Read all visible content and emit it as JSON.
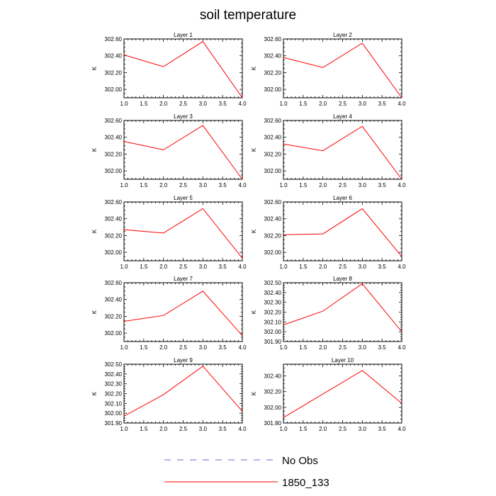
{
  "title": "soil temperature",
  "colors": {
    "model": "#ff0000",
    "obs": "#6a6ad0"
  },
  "legend": [
    {
      "label": "No Obs",
      "style": "dashed",
      "color": "#6a6ad0"
    },
    {
      "label": "1850_133",
      "style": "solid",
      "color": "#ff0000"
    }
  ],
  "chart_data": [
    {
      "type": "line",
      "title": "Layer 1",
      "ylabel": "K",
      "xlim": [
        1.0,
        4.0
      ],
      "ylim": [
        301.9,
        302.6
      ],
      "xticks": [
        "1.0",
        "1.5",
        "2.0",
        "2.5",
        "3.0",
        "3.5",
        "4.0"
      ],
      "yticks": [
        "302.00",
        "302.20",
        "302.40",
        "302.60"
      ],
      "ytick_values": [
        302.0,
        302.2,
        302.4,
        302.6
      ],
      "series": [
        {
          "name": "1850_133",
          "x": [
            1,
            2,
            3,
            4
          ],
          "values": [
            302.41,
            302.27,
            302.57,
            301.9
          ]
        }
      ]
    },
    {
      "type": "line",
      "title": "Layer 2",
      "ylabel": "K",
      "xlim": [
        1.0,
        4.0
      ],
      "ylim": [
        301.9,
        302.6
      ],
      "xticks": [
        "1.0",
        "1.5",
        "2.0",
        "2.5",
        "3.0",
        "3.5",
        "4.0"
      ],
      "yticks": [
        "302.00",
        "302.20",
        "302.40",
        "302.60"
      ],
      "ytick_values": [
        302.0,
        302.2,
        302.4,
        302.6
      ],
      "series": [
        {
          "name": "1850_133",
          "x": [
            1,
            2,
            3,
            4
          ],
          "values": [
            302.38,
            302.26,
            302.55,
            301.9
          ]
        }
      ]
    },
    {
      "type": "line",
      "title": "Layer 3",
      "ylabel": "K",
      "xlim": [
        1.0,
        4.0
      ],
      "ylim": [
        301.9,
        302.6
      ],
      "xticks": [
        "1.0",
        "1.5",
        "2.0",
        "2.5",
        "3.0",
        "3.5",
        "4.0"
      ],
      "yticks": [
        "302.00",
        "302.20",
        "302.40",
        "302.60"
      ],
      "ytick_values": [
        302.0,
        302.2,
        302.4,
        302.6
      ],
      "series": [
        {
          "name": "1850_133",
          "x": [
            1,
            2,
            3,
            4
          ],
          "values": [
            302.35,
            302.25,
            302.54,
            301.9
          ]
        }
      ]
    },
    {
      "type": "line",
      "title": "Layer 4",
      "ylabel": "K",
      "xlim": [
        1.0,
        4.0
      ],
      "ylim": [
        301.9,
        302.6
      ],
      "xticks": [
        "1.0",
        "1.5",
        "2.0",
        "2.5",
        "3.0",
        "3.5",
        "4.0"
      ],
      "yticks": [
        "302.00",
        "302.20",
        "302.40",
        "302.60"
      ],
      "ytick_values": [
        302.0,
        302.2,
        302.4,
        302.6
      ],
      "series": [
        {
          "name": "1850_133",
          "x": [
            1,
            2,
            3,
            4
          ],
          "values": [
            302.32,
            302.24,
            302.53,
            301.9
          ]
        }
      ]
    },
    {
      "type": "line",
      "title": "Layer 5",
      "ylabel": "K",
      "xlim": [
        1.0,
        4.0
      ],
      "ylim": [
        301.9,
        302.6
      ],
      "xticks": [
        "1.0",
        "1.5",
        "2.0",
        "2.5",
        "3.0",
        "3.5",
        "4.0"
      ],
      "yticks": [
        "302.00",
        "302.20",
        "302.40",
        "302.60"
      ],
      "ytick_values": [
        302.0,
        302.2,
        302.4,
        302.6
      ],
      "series": [
        {
          "name": "1850_133",
          "x": [
            1,
            2,
            3,
            4
          ],
          "values": [
            302.27,
            302.23,
            302.52,
            301.93
          ]
        }
      ]
    },
    {
      "type": "line",
      "title": "Layer 6",
      "ylabel": "K",
      "xlim": [
        1.0,
        4.0
      ],
      "ylim": [
        301.9,
        302.6
      ],
      "xticks": [
        "1.0",
        "1.5",
        "2.0",
        "2.5",
        "3.0",
        "3.5",
        "4.0"
      ],
      "yticks": [
        "302.00",
        "302.20",
        "302.40",
        "302.60"
      ],
      "ytick_values": [
        302.0,
        302.2,
        302.4,
        302.6
      ],
      "series": [
        {
          "name": "1850_133",
          "x": [
            1,
            2,
            3,
            4
          ],
          "values": [
            302.21,
            302.22,
            302.52,
            301.95
          ]
        }
      ]
    },
    {
      "type": "line",
      "title": "Layer 7",
      "ylabel": "K",
      "xlim": [
        1.0,
        4.0
      ],
      "ylim": [
        301.9,
        302.6
      ],
      "xticks": [
        "1.0",
        "1.5",
        "2.0",
        "2.5",
        "3.0",
        "3.5",
        "4.0"
      ],
      "yticks": [
        "302.00",
        "302.20",
        "302.40",
        "302.60"
      ],
      "ytick_values": [
        302.0,
        302.2,
        302.4,
        302.6
      ],
      "series": [
        {
          "name": "1850_133",
          "x": [
            1,
            2,
            3,
            4
          ],
          "values": [
            302.14,
            302.21,
            302.5,
            301.97
          ]
        }
      ]
    },
    {
      "type": "line",
      "title": "Layer 8",
      "ylabel": "K",
      "xlim": [
        1.0,
        4.0
      ],
      "ylim": [
        301.9,
        302.5
      ],
      "xticks": [
        "1.0",
        "1.5",
        "2.0",
        "2.5",
        "3.0",
        "3.5",
        "4.0"
      ],
      "yticks": [
        "301.90",
        "302.00",
        "302.10",
        "302.20",
        "302.30",
        "302.40",
        "302.50"
      ],
      "ytick_values": [
        301.9,
        302.0,
        302.1,
        302.2,
        302.3,
        302.4,
        302.5
      ],
      "series": [
        {
          "name": "1850_133",
          "x": [
            1,
            2,
            3,
            4
          ],
          "values": [
            302.07,
            302.21,
            302.49,
            302.0
          ]
        }
      ]
    },
    {
      "type": "line",
      "title": "Layer 9",
      "ylabel": "K",
      "xlim": [
        1.0,
        4.0
      ],
      "ylim": [
        301.9,
        302.5
      ],
      "xticks": [
        "1.0",
        "1.5",
        "2.0",
        "2.5",
        "3.0",
        "3.5",
        "4.0"
      ],
      "yticks": [
        "301.90",
        "302.00",
        "302.10",
        "302.20",
        "302.30",
        "302.40",
        "302.50"
      ],
      "ytick_values": [
        301.9,
        302.0,
        302.1,
        302.2,
        302.3,
        302.4,
        302.5
      ],
      "series": [
        {
          "name": "1850_133",
          "x": [
            1,
            2,
            3,
            4
          ],
          "values": [
            301.97,
            302.19,
            302.48,
            302.02
          ]
        }
      ]
    },
    {
      "type": "line",
      "title": "Layer 10",
      "ylabel": "K",
      "xlim": [
        1.0,
        4.0
      ],
      "ylim": [
        301.8,
        302.55
      ],
      "xticks": [
        "1.0",
        "1.5",
        "2.0",
        "2.5",
        "3.0",
        "3.5",
        "4.0"
      ],
      "yticks": [
        "301.80",
        "302.00",
        "302.20",
        "302.40"
      ],
      "ytick_values": [
        301.8,
        302.0,
        302.2,
        302.4
      ],
      "series": [
        {
          "name": "1850_133",
          "x": [
            1,
            2,
            3,
            4
          ],
          "values": [
            301.87,
            302.17,
            302.47,
            302.05
          ]
        }
      ]
    }
  ]
}
